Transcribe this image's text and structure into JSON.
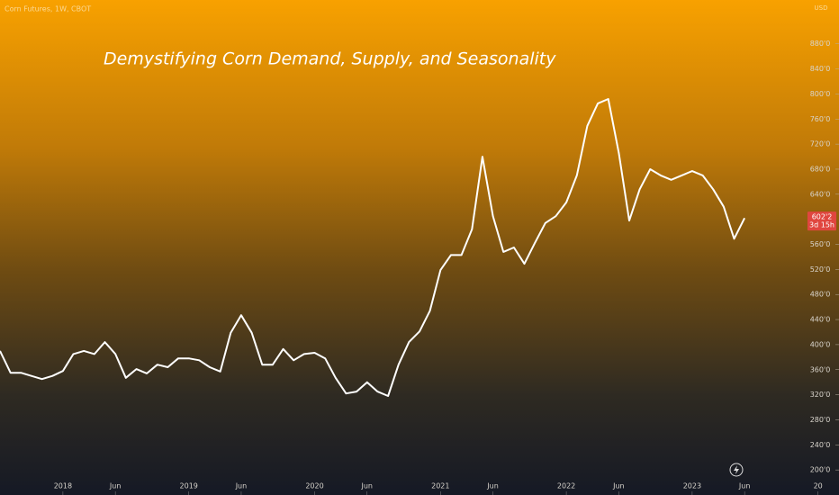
{
  "chart_data": {
    "type": "line",
    "header": "Corn Futures, 1W, CBOT",
    "title": "Demystifying Corn Demand, Supply, and Seasonality",
    "currency": "USD",
    "x": [
      "2017-07",
      "2017-08",
      "2017-09",
      "2017-10",
      "2017-11",
      "2017-12",
      "2018-01",
      "2018-02",
      "2018-03",
      "2018-04",
      "2018-05",
      "2018-06",
      "2018-07",
      "2018-08",
      "2018-09",
      "2018-10",
      "2018-11",
      "2018-12",
      "2019-01",
      "2019-02",
      "2019-03",
      "2019-04",
      "2019-05",
      "2019-06",
      "2019-07",
      "2019-08",
      "2019-09",
      "2019-10",
      "2019-11",
      "2019-12",
      "2020-01",
      "2020-02",
      "2020-03",
      "2020-04",
      "2020-05",
      "2020-06",
      "2020-07",
      "2020-08",
      "2020-09",
      "2020-10",
      "2020-11",
      "2020-12",
      "2021-01",
      "2021-02",
      "2021-03",
      "2021-04",
      "2021-05",
      "2021-06",
      "2021-07",
      "2021-08",
      "2021-09",
      "2021-10",
      "2021-11",
      "2021-12",
      "2022-01",
      "2022-02",
      "2022-03",
      "2022-04",
      "2022-05",
      "2022-06",
      "2022-07",
      "2022-08",
      "2022-09",
      "2022-10",
      "2022-11",
      "2022-12",
      "2023-01",
      "2023-02",
      "2023-03",
      "2023-04",
      "2023-05",
      "2023-06"
    ],
    "values": [
      390,
      355,
      355,
      350,
      345,
      350,
      358,
      385,
      390,
      385,
      404,
      385,
      347,
      361,
      354,
      368,
      364,
      378,
      378,
      375,
      364,
      357,
      419,
      447,
      419,
      368,
      368,
      393,
      375,
      385,
      387,
      378,
      347,
      322,
      325,
      340,
      325,
      318,
      368,
      404,
      421,
      454,
      519,
      543,
      543,
      584,
      700,
      605,
      548,
      555,
      529,
      562,
      594,
      605,
      627,
      670,
      749,
      785,
      792,
      706,
      598,
      648,
      680,
      670,
      663,
      670,
      677,
      670,
      648,
      620,
      569,
      602
    ],
    "color": "#ffffff",
    "xlim": [
      "2017-07",
      "2024-03"
    ],
    "xticks": [
      {
        "value": "2018-01",
        "label": "2018"
      },
      {
        "value": "2018-06",
        "label": "Jun"
      },
      {
        "value": "2019-01",
        "label": "2019"
      },
      {
        "value": "2019-06",
        "label": "Jun"
      },
      {
        "value": "2020-01",
        "label": "2020"
      },
      {
        "value": "2020-06",
        "label": "Jun"
      },
      {
        "value": "2021-01",
        "label": "2021"
      },
      {
        "value": "2021-06",
        "label": "Jun"
      },
      {
        "value": "2022-01",
        "label": "2022"
      },
      {
        "value": "2022-06",
        "label": "Jun"
      },
      {
        "value": "2023-01",
        "label": "2023"
      },
      {
        "value": "2023-06",
        "label": "Jun"
      },
      {
        "value": "2024-01",
        "label": "20"
      }
    ],
    "ylim": [
      160,
      950
    ],
    "yticks": [
      {
        "value": 200,
        "label": "200'0"
      },
      {
        "value": 240,
        "label": "240'0"
      },
      {
        "value": 280,
        "label": "280'0"
      },
      {
        "value": 320,
        "label": "320'0"
      },
      {
        "value": 360,
        "label": "360'0"
      },
      {
        "value": 400,
        "label": "400'0"
      },
      {
        "value": 440,
        "label": "440'0"
      },
      {
        "value": 480,
        "label": "480'0"
      },
      {
        "value": 520,
        "label": "520'0"
      },
      {
        "value": 560,
        "label": "560'0"
      },
      {
        "value": 640,
        "label": "640'0"
      },
      {
        "value": 680,
        "label": "680'0"
      },
      {
        "value": 720,
        "label": "720'0"
      },
      {
        "value": 760,
        "label": "760'0"
      },
      {
        "value": 800,
        "label": "800'0"
      },
      {
        "value": 840,
        "label": "840'0"
      },
      {
        "value": 880,
        "label": "880'0"
      }
    ],
    "last_price": {
      "value": 602.25,
      "label": "602'2"
    },
    "countdown": "3d 15h"
  }
}
